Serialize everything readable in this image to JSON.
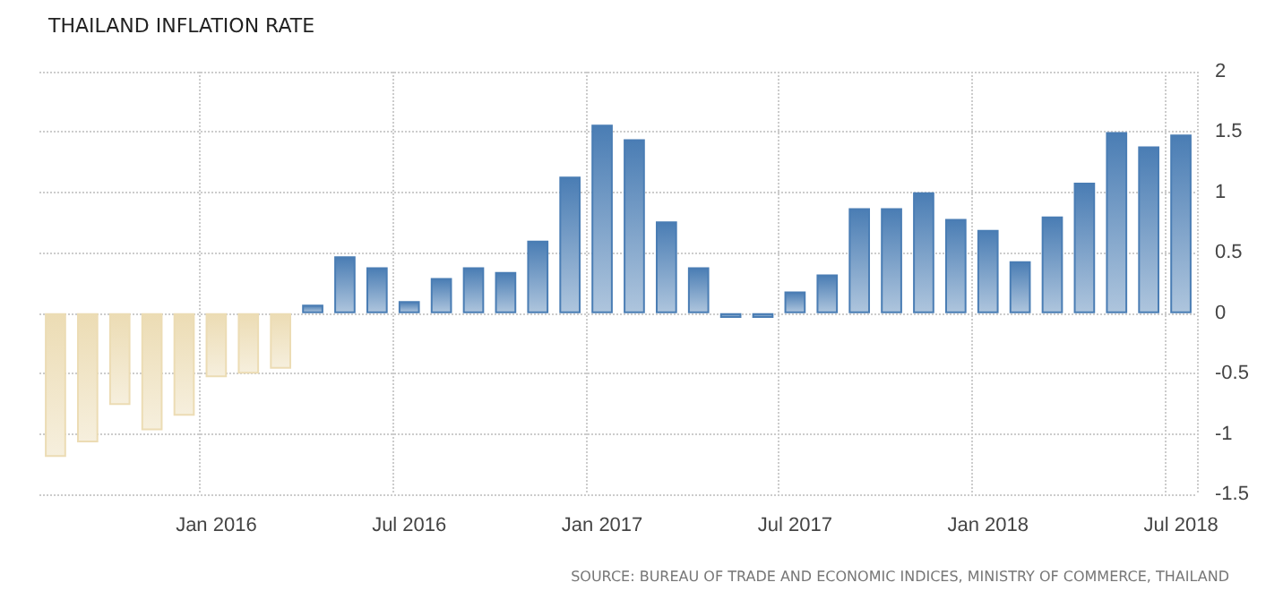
{
  "chart_data": {
    "type": "bar",
    "title": "THAILAND INFLATION RATE",
    "categories": [
      null,
      null,
      null,
      null,
      null,
      "Jan 2016",
      null,
      null,
      null,
      null,
      null,
      "Jul 2016",
      null,
      null,
      null,
      null,
      null,
      "Jan 2017",
      null,
      null,
      null,
      null,
      null,
      "Jul 2017",
      null,
      null,
      null,
      null,
      null,
      "Jan 2018",
      null,
      null,
      null,
      null,
      null,
      "Jul 2018"
    ],
    "values": [
      -1.19,
      -1.07,
      -0.76,
      -0.97,
      -0.85,
      -0.53,
      -0.5,
      -0.46,
      0.07,
      0.47,
      0.38,
      0.1,
      0.29,
      0.38,
      0.34,
      0.6,
      1.13,
      1.56,
      1.44,
      0.76,
      0.38,
      -0.04,
      -0.04,
      0.18,
      0.32,
      0.87,
      0.87,
      1.0,
      0.78,
      0.69,
      0.43,
      0.8,
      1.08,
      1.5,
      1.38,
      1.48
    ],
    "colors": [
      "#ecdcb4",
      "#ecdcb4",
      "#ecdcb4",
      "#ecdcb4",
      "#ecdcb4",
      "#ecdcb4",
      "#ecdcb4",
      "#ecdcb4",
      "#4a7db4",
      "#4a7db4",
      "#4a7db4",
      "#4a7db4",
      "#4a7db4",
      "#4a7db4",
      "#4a7db4",
      "#4a7db4",
      "#4a7db4",
      "#4a7db4",
      "#4a7db4",
      "#4a7db4",
      "#4a7db4",
      "#4a7db4",
      "#4a7db4",
      "#4a7db4",
      "#4a7db4",
      "#4a7db4",
      "#4a7db4",
      "#4a7db4",
      "#4a7db4",
      "#4a7db4",
      "#4a7db4",
      "#4a7db4",
      "#4a7db4",
      "#4a7db4",
      "#4a7db4",
      "#4a7db4"
    ],
    "ylim": [
      -1.5,
      2
    ],
    "yticks": [
      -1.5,
      -1,
      -0.5,
      0,
      0.5,
      1,
      1.5,
      2
    ],
    "grid": true,
    "annotations": [
      "SOURCE: BUREAU OF TRADE AND ECONOMIC INDICES, MINISTRY OF COMMERCE, THAILAND"
    ]
  }
}
